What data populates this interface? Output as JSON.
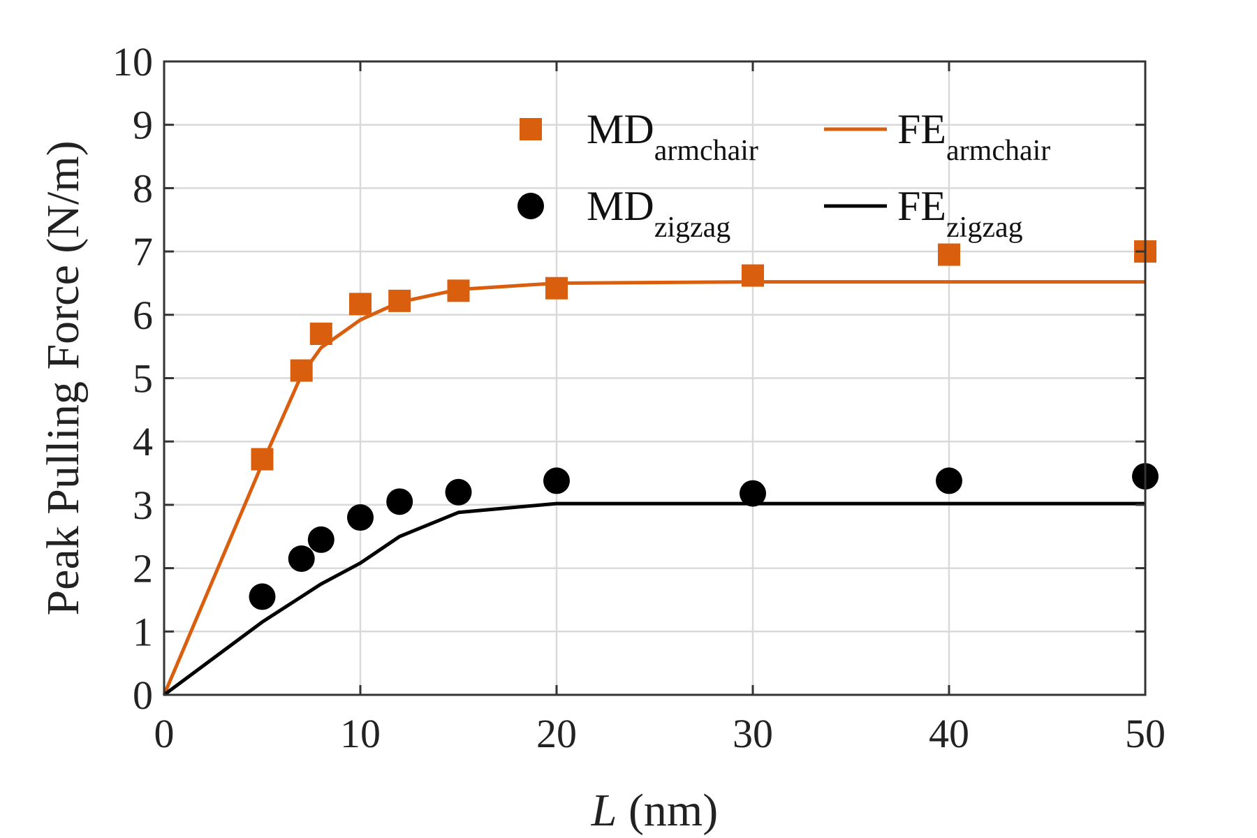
{
  "chart_data": {
    "type": "line",
    "title": "",
    "xlabel_var": "L",
    "xlabel_unit": " (nm)",
    "ylabel": "Peak Pulling Force (N/m)",
    "xlim": [
      0,
      50
    ],
    "ylim": [
      0,
      10
    ],
    "xticks": [
      0,
      10,
      20,
      30,
      40,
      50
    ],
    "yticks": [
      0,
      1,
      2,
      3,
      4,
      5,
      6,
      7,
      8,
      9,
      10
    ],
    "grid": true,
    "legend_position": "top-right",
    "colors": {
      "armchair": "#d95f0e",
      "zigzag": "#000000",
      "grid": "#d9d9d9",
      "axes": "#333333"
    },
    "series": [
      {
        "id": "md_armchair",
        "name": "MD",
        "subscript": "armchair",
        "kind": "scatter",
        "marker": "square",
        "color": "#d95f0e",
        "x": [
          5,
          7,
          8,
          10,
          12,
          15,
          20,
          30,
          40,
          50
        ],
        "y": [
          3.72,
          5.12,
          5.7,
          6.17,
          6.22,
          6.38,
          6.42,
          6.62,
          6.95,
          7.0
        ]
      },
      {
        "id": "fe_armchair",
        "name": "FE",
        "subscript": "armchair",
        "kind": "line",
        "color": "#d95f0e",
        "x": [
          0,
          5,
          7,
          8,
          10,
          12,
          15,
          20,
          30,
          40,
          50
        ],
        "y": [
          0,
          3.65,
          5.05,
          5.48,
          5.92,
          6.2,
          6.4,
          6.5,
          6.52,
          6.52,
          6.52
        ]
      },
      {
        "id": "md_zigzag",
        "name": "MD",
        "subscript": "zigzag",
        "kind": "scatter",
        "marker": "circle",
        "color": "#000000",
        "x": [
          5,
          7,
          8,
          10,
          12,
          15,
          20,
          30,
          40,
          50
        ],
        "y": [
          1.55,
          2.15,
          2.45,
          2.8,
          3.05,
          3.2,
          3.38,
          3.18,
          3.38,
          3.45
        ]
      },
      {
        "id": "fe_zigzag",
        "name": "FE",
        "subscript": "zigzag",
        "kind": "line",
        "color": "#000000",
        "x": [
          0,
          5,
          7,
          8,
          10,
          12,
          15,
          20,
          30,
          40,
          50
        ],
        "y": [
          0,
          1.15,
          1.55,
          1.75,
          2.08,
          2.5,
          2.88,
          3.02,
          3.02,
          3.02,
          3.02
        ]
      }
    ]
  }
}
